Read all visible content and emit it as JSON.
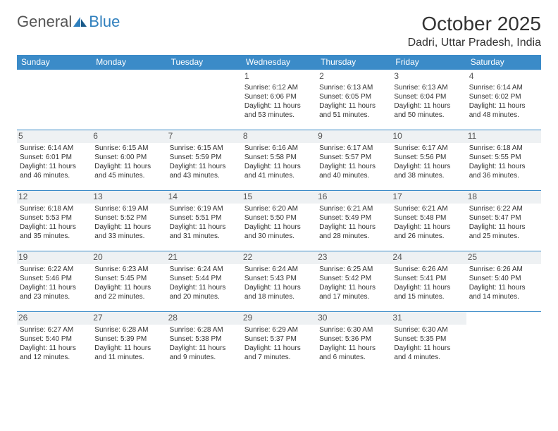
{
  "brand": {
    "part1": "General",
    "part2": "Blue"
  },
  "title": "October 2025",
  "location": "Dadri, Uttar Pradesh, India",
  "colors": {
    "header_bg": "#3b8bc8",
    "header_text": "#ffffff",
    "border": "#3b8bc8",
    "shade_bg": "#eef1f3",
    "text": "#333333",
    "logo_accent": "#2f7fbd"
  },
  "daysOfWeek": [
    "Sunday",
    "Monday",
    "Tuesday",
    "Wednesday",
    "Thursday",
    "Friday",
    "Saturday"
  ],
  "weeks": [
    {
      "shaded": false,
      "days": [
        null,
        null,
        null,
        {
          "n": "1",
          "sr": "6:12 AM",
          "ss": "6:06 PM",
          "dl": "11 hours and 53 minutes."
        },
        {
          "n": "2",
          "sr": "6:13 AM",
          "ss": "6:05 PM",
          "dl": "11 hours and 51 minutes."
        },
        {
          "n": "3",
          "sr": "6:13 AM",
          "ss": "6:04 PM",
          "dl": "11 hours and 50 minutes."
        },
        {
          "n": "4",
          "sr": "6:14 AM",
          "ss": "6:02 PM",
          "dl": "11 hours and 48 minutes."
        }
      ]
    },
    {
      "shaded": true,
      "days": [
        {
          "n": "5",
          "sr": "6:14 AM",
          "ss": "6:01 PM",
          "dl": "11 hours and 46 minutes."
        },
        {
          "n": "6",
          "sr": "6:15 AM",
          "ss": "6:00 PM",
          "dl": "11 hours and 45 minutes."
        },
        {
          "n": "7",
          "sr": "6:15 AM",
          "ss": "5:59 PM",
          "dl": "11 hours and 43 minutes."
        },
        {
          "n": "8",
          "sr": "6:16 AM",
          "ss": "5:58 PM",
          "dl": "11 hours and 41 minutes."
        },
        {
          "n": "9",
          "sr": "6:17 AM",
          "ss": "5:57 PM",
          "dl": "11 hours and 40 minutes."
        },
        {
          "n": "10",
          "sr": "6:17 AM",
          "ss": "5:56 PM",
          "dl": "11 hours and 38 minutes."
        },
        {
          "n": "11",
          "sr": "6:18 AM",
          "ss": "5:55 PM",
          "dl": "11 hours and 36 minutes."
        }
      ]
    },
    {
      "shaded": true,
      "days": [
        {
          "n": "12",
          "sr": "6:18 AM",
          "ss": "5:53 PM",
          "dl": "11 hours and 35 minutes."
        },
        {
          "n": "13",
          "sr": "6:19 AM",
          "ss": "5:52 PM",
          "dl": "11 hours and 33 minutes."
        },
        {
          "n": "14",
          "sr": "6:19 AM",
          "ss": "5:51 PM",
          "dl": "11 hours and 31 minutes."
        },
        {
          "n": "15",
          "sr": "6:20 AM",
          "ss": "5:50 PM",
          "dl": "11 hours and 30 minutes."
        },
        {
          "n": "16",
          "sr": "6:21 AM",
          "ss": "5:49 PM",
          "dl": "11 hours and 28 minutes."
        },
        {
          "n": "17",
          "sr": "6:21 AM",
          "ss": "5:48 PM",
          "dl": "11 hours and 26 minutes."
        },
        {
          "n": "18",
          "sr": "6:22 AM",
          "ss": "5:47 PM",
          "dl": "11 hours and 25 minutes."
        }
      ]
    },
    {
      "shaded": true,
      "days": [
        {
          "n": "19",
          "sr": "6:22 AM",
          "ss": "5:46 PM",
          "dl": "11 hours and 23 minutes."
        },
        {
          "n": "20",
          "sr": "6:23 AM",
          "ss": "5:45 PM",
          "dl": "11 hours and 22 minutes."
        },
        {
          "n": "21",
          "sr": "6:24 AM",
          "ss": "5:44 PM",
          "dl": "11 hours and 20 minutes."
        },
        {
          "n": "22",
          "sr": "6:24 AM",
          "ss": "5:43 PM",
          "dl": "11 hours and 18 minutes."
        },
        {
          "n": "23",
          "sr": "6:25 AM",
          "ss": "5:42 PM",
          "dl": "11 hours and 17 minutes."
        },
        {
          "n": "24",
          "sr": "6:26 AM",
          "ss": "5:41 PM",
          "dl": "11 hours and 15 minutes."
        },
        {
          "n": "25",
          "sr": "6:26 AM",
          "ss": "5:40 PM",
          "dl": "11 hours and 14 minutes."
        }
      ]
    },
    {
      "shaded": true,
      "days": [
        {
          "n": "26",
          "sr": "6:27 AM",
          "ss": "5:40 PM",
          "dl": "11 hours and 12 minutes."
        },
        {
          "n": "27",
          "sr": "6:28 AM",
          "ss": "5:39 PM",
          "dl": "11 hours and 11 minutes."
        },
        {
          "n": "28",
          "sr": "6:28 AM",
          "ss": "5:38 PM",
          "dl": "11 hours and 9 minutes."
        },
        {
          "n": "29",
          "sr": "6:29 AM",
          "ss": "5:37 PM",
          "dl": "11 hours and 7 minutes."
        },
        {
          "n": "30",
          "sr": "6:30 AM",
          "ss": "5:36 PM",
          "dl": "11 hours and 6 minutes."
        },
        {
          "n": "31",
          "sr": "6:30 AM",
          "ss": "5:35 PM",
          "dl": "11 hours and 4 minutes."
        },
        null
      ]
    }
  ],
  "labels": {
    "sunrise": "Sunrise:",
    "sunset": "Sunset:",
    "daylight": "Daylight:"
  }
}
